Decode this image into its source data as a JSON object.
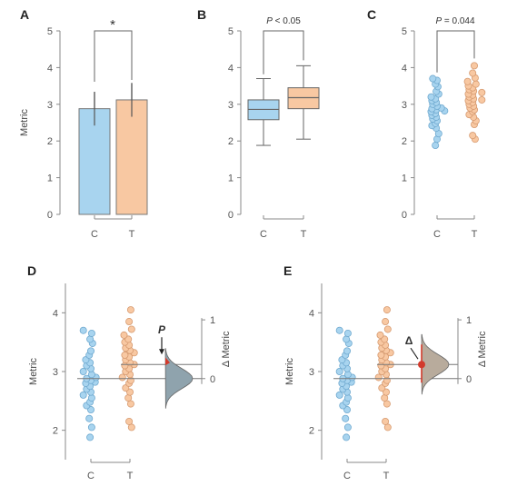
{
  "chart_data": [
    {
      "panel": "A",
      "type": "bar",
      "categories": [
        "C",
        "T"
      ],
      "values": [
        2.88,
        3.12
      ],
      "errors": [
        0.46,
        0.46
      ],
      "ylabel": "Metric",
      "ylim": [
        0,
        5
      ],
      "yticks": [
        "0",
        "1",
        "2",
        "3",
        "4",
        "5"
      ],
      "annotation": "*",
      "colors": [
        "#a8d4ef",
        "#f8c8a2"
      ]
    },
    {
      "panel": "B",
      "type": "box",
      "categories": [
        "C",
        "T"
      ],
      "boxes": [
        {
          "whisker_low": 1.88,
          "q1": 2.58,
          "median": 2.86,
          "q3": 3.12,
          "whisker_high": 3.7
        },
        {
          "whisker_low": 2.05,
          "q1": 2.88,
          "median": 3.18,
          "q3": 3.45,
          "whisker_high": 4.05
        }
      ],
      "ylim": [
        0,
        5
      ],
      "yticks": [
        "0",
        "1",
        "2",
        "3",
        "4",
        "5"
      ],
      "annotation_italic": "P",
      "annotation_rest": " < 0.05",
      "colors": [
        "#a8d4ef",
        "#f8c8a2"
      ]
    },
    {
      "panel": "C",
      "type": "scatter",
      "categories": [
        "C",
        "T"
      ],
      "series": [
        {
          "values": [
            1.88,
            2.05,
            2.2,
            2.35,
            2.42,
            2.48,
            2.55,
            2.6,
            2.65,
            2.7,
            2.75,
            2.8,
            2.82,
            2.85,
            2.88,
            2.9,
            2.95,
            3.0,
            3.05,
            3.1,
            3.15,
            3.2,
            3.28,
            3.35,
            3.48,
            3.55,
            3.65,
            3.7
          ]
        },
        {
          "values": [
            2.05,
            2.15,
            2.45,
            2.55,
            2.65,
            2.72,
            2.8,
            2.85,
            2.9,
            2.95,
            3.0,
            3.05,
            3.1,
            3.12,
            3.15,
            3.2,
            3.25,
            3.28,
            3.32,
            3.36,
            3.4,
            3.45,
            3.5,
            3.55,
            3.62,
            3.72,
            3.85,
            4.05
          ]
        }
      ],
      "ylim": [
        0,
        5
      ],
      "yticks": [
        "0",
        "1",
        "2",
        "3",
        "4",
        "5"
      ],
      "annotation_italic": "P",
      "annotation_rest": " = 0.044",
      "colors": [
        "#a8d4ef",
        "#f8c8a2"
      ]
    },
    {
      "panel": "D",
      "type": "scatter",
      "categories": [
        "C",
        "T"
      ],
      "ylabel": "Metric",
      "ylim": [
        1.5,
        4.5
      ],
      "yticks": [
        "2",
        "3",
        "4"
      ],
      "y2label": "Δ Metric",
      "y2ticks": [
        "0",
        "1"
      ],
      "mean_c": 2.88,
      "mean_t": 3.12,
      "annotation_italic": "P",
      "colors": [
        "#a8d4ef",
        "#f8c8a2",
        "#8fa3ad"
      ]
    },
    {
      "panel": "E",
      "type": "scatter",
      "categories": [
        "C",
        "T"
      ],
      "ylabel": "Metric",
      "ylim": [
        1.5,
        4.5
      ],
      "yticks": [
        "2",
        "3",
        "4"
      ],
      "y2label": "Δ Metric",
      "y2ticks": [
        "0",
        "1"
      ],
      "mean_c": 2.88,
      "mean_t": 3.12,
      "annotation": "Δ",
      "colors": [
        "#a8d4ef",
        "#f8c8a2",
        "#b8ab9c"
      ]
    }
  ]
}
